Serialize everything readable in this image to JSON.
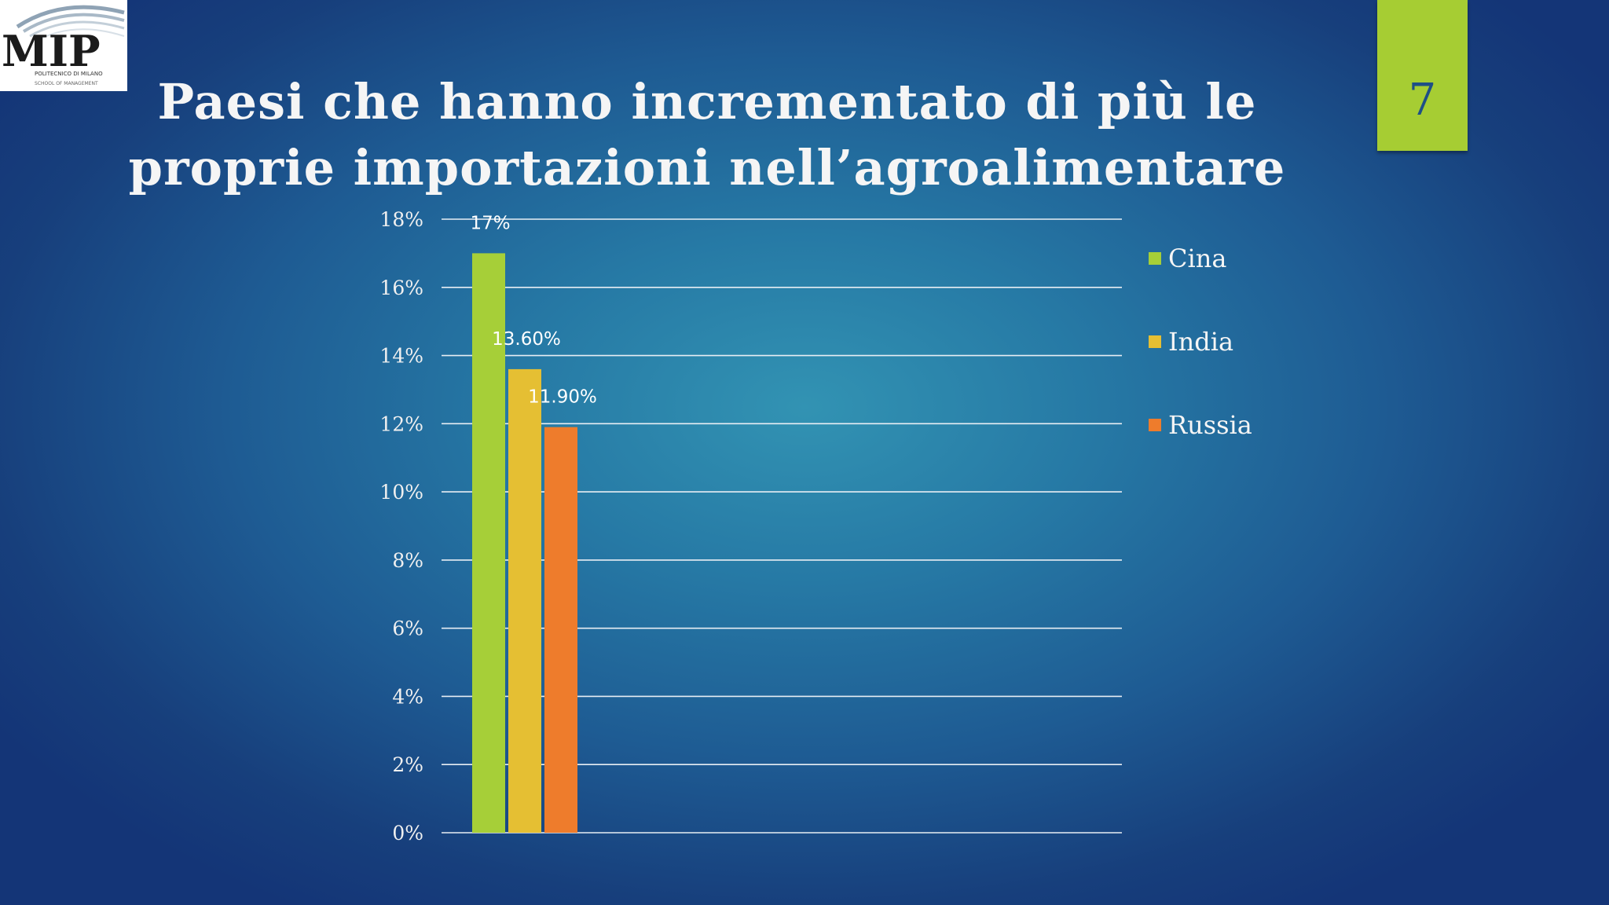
{
  "logo": {
    "text": "MIP",
    "subtitle": "POLITECNICO DI MILANO",
    "tagline": "SCHOOL OF MANAGEMENT"
  },
  "title": {
    "line1": "Paesi che hanno incrementato di più le",
    "line2": "proprie importazioni nell’agroalimentare"
  },
  "page_number": "7",
  "colors": {
    "badge": "#a6cd33",
    "page_number": "#1e4f86",
    "gridline": "#e8eef4"
  },
  "chart_data": {
    "type": "bar",
    "title": "",
    "xlabel": "",
    "ylabel": "",
    "ylim": [
      0,
      18
    ],
    "yticks": [
      0,
      2,
      4,
      6,
      8,
      10,
      12,
      14,
      16,
      18
    ],
    "ytick_labels": [
      "0%",
      "2%",
      "4%",
      "6%",
      "8%",
      "10%",
      "12%",
      "14%",
      "16%",
      "18%"
    ],
    "grid": true,
    "legend_position": "right",
    "series": [
      {
        "name": "Cina",
        "value": 17,
        "label": "17%",
        "color": "#a6cf38"
      },
      {
        "name": "India",
        "value": 13.6,
        "label": "13.60%",
        "color": "#e5bf33"
      },
      {
        "name": "Russia",
        "value": 11.9,
        "label": "11.90%",
        "color": "#ee7c2c"
      }
    ]
  }
}
